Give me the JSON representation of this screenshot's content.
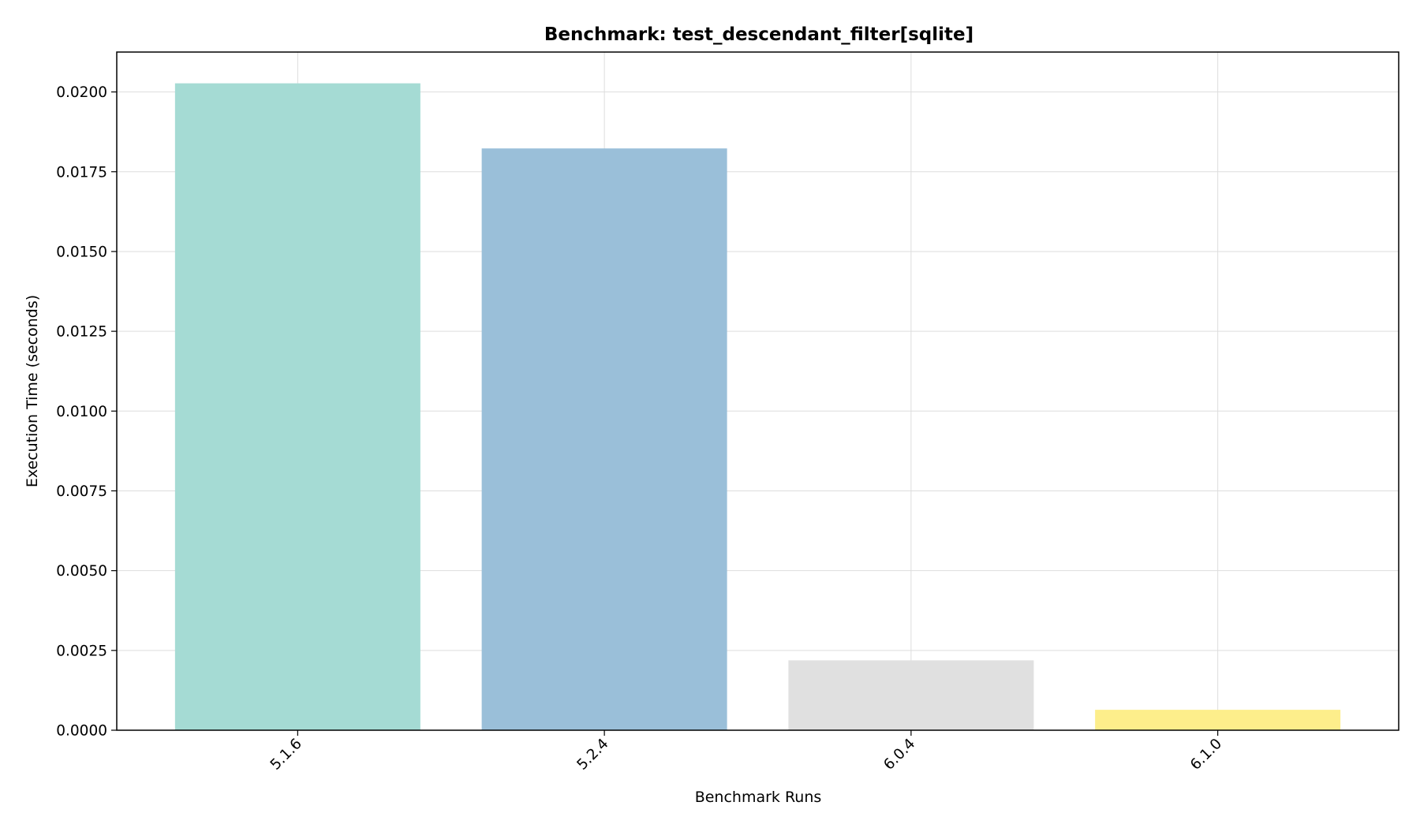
{
  "chart_data": {
    "type": "bar",
    "title": "Benchmark: test_descendant_filter[sqlite]",
    "xlabel": "Benchmark Runs",
    "ylabel": "Execution Time (seconds)",
    "categories": [
      "5.1.6",
      "5.2.4",
      "6.0.4",
      "6.1.0"
    ],
    "values": [
      0.02027,
      0.01823,
      0.00219,
      0.00064
    ],
    "colors": [
      "#a5dbd4",
      "#9abfd9",
      "#e0e0e0",
      "#fdee8b"
    ],
    "ylim": [
      0,
      0.02125
    ],
    "yticks": [
      0.0,
      0.0025,
      0.005,
      0.0075,
      0.01,
      0.0125,
      0.015,
      0.0175,
      0.02
    ],
    "ytick_labels": [
      "0.0000",
      "0.0025",
      "0.0050",
      "0.0075",
      "0.0100",
      "0.0125",
      "0.0150",
      "0.0175",
      "0.0200"
    ],
    "grid": true,
    "legend": "none"
  }
}
